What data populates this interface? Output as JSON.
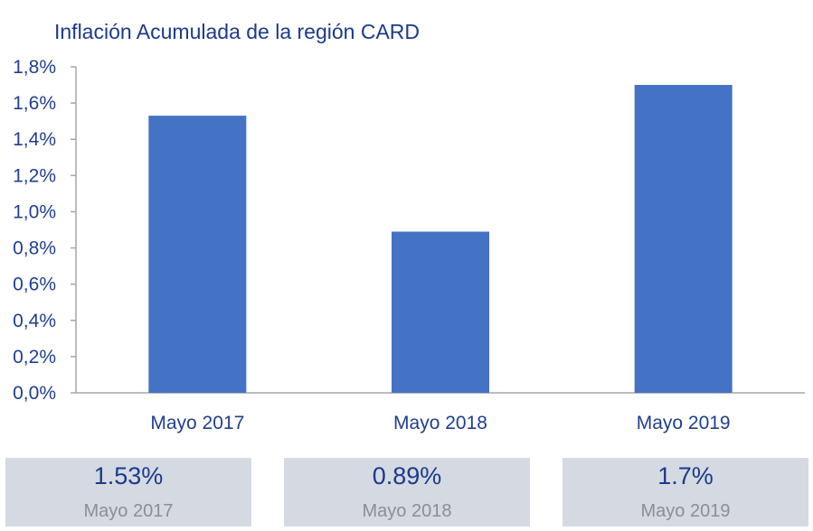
{
  "chart_data": {
    "type": "bar",
    "title": "Inflación Acumulada de la región CARD",
    "categories": [
      "Mayo 2017",
      "Mayo 2018",
      "Mayo 2019"
    ],
    "values": [
      1.53,
      0.89,
      1.7
    ],
    "ylim": [
      0,
      1.8
    ],
    "yticks": [
      "0,0%",
      "0,2%",
      "0,4%",
      "0,6%",
      "0,8%",
      "1,0%",
      "1,2%",
      "1,4%",
      "1,6%",
      "1,8%"
    ],
    "xlabel": "",
    "ylabel": "",
    "grid": false,
    "bar_color": "#4472c4",
    "axis_color": "#a6a6a6"
  },
  "summary_cards": [
    {
      "value": "1.53%",
      "label": "Mayo 2017"
    },
    {
      "value": "0.89%",
      "label": "Mayo 2018"
    },
    {
      "value": "1.7%",
      "label": "Mayo 2019"
    }
  ]
}
